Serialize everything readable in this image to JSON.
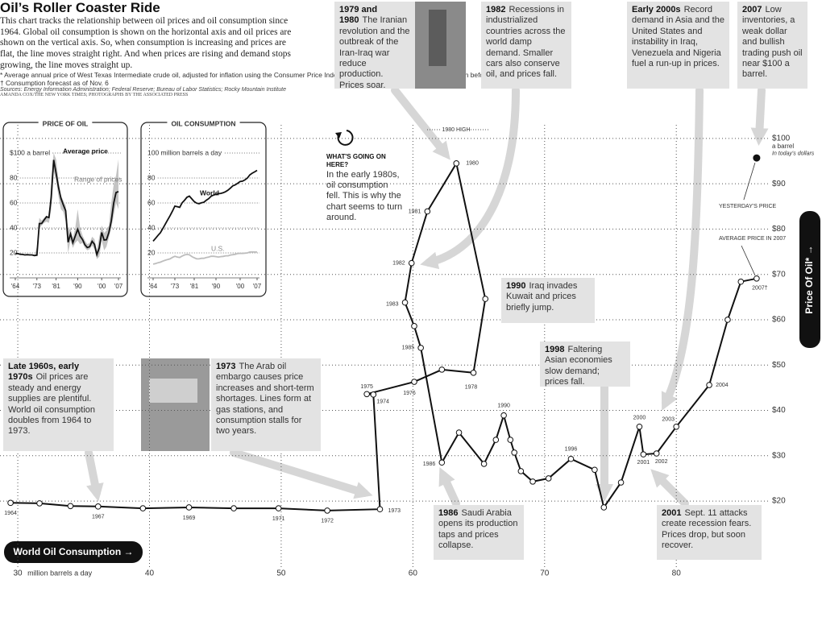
{
  "chart_data": [
    {
      "type": "scatter",
      "title": "Oil’s Roller Coaster Ride",
      "subtitle": "This chart tracks the relationship between oil prices and oil consumption since 1964.  Global oil consumption is shown on the horizontal axis and oil prices are shown on the vertical axis. So, when consumption is increasing and prices are flat, the line moves straight right. And when prices are rising and demand stops growing, the line moves straight up.",
      "x_title": "World Oil Consumption →",
      "x_label": "million barrels a day",
      "y_title": "Price Of Oil* →",
      "y_unit": "a barrel",
      "y_unit_note": "In today's dollars",
      "high_label": "1980 HIGH",
      "average_label": "AVERAGE PRICE IN 2007",
      "yesterday": {
        "label": "YESTERDAY'S PRICE",
        "x": 86.1,
        "value": 95.7
      },
      "color": "#111111",
      "grid": true,
      "xlim": [
        28.65,
        89.9
      ],
      "ylim": [
        2.6,
        103
      ],
      "xticks": [
        30,
        40,
        50,
        60,
        70,
        80
      ],
      "yticks": [
        {
          "value": 20,
          "label": "$20"
        },
        {
          "value": 30,
          "label": "$30"
        },
        {
          "value": 40,
          "label": "$40"
        },
        {
          "value": 50,
          "label": "$50"
        },
        {
          "value": 60,
          "label": "$60"
        },
        {
          "value": 70,
          "label": "$70"
        },
        {
          "value": 80,
          "label": "$80"
        },
        {
          "value": 90,
          "label": "$90"
        },
        {
          "value": 100,
          "label": "$100"
        }
      ],
      "x": [
        29.45,
        31.65,
        34.0,
        36.1,
        39.5,
        43.0,
        46.4,
        49.8,
        53.5,
        57.5,
        57.0,
        56.5,
        60.1,
        62.2,
        64.6,
        65.5,
        63.3,
        61.1,
        59.9,
        59.4,
        60.1,
        60.6,
        62.2,
        63.5,
        65.4,
        66.3,
        66.9,
        67.4,
        67.7,
        68.2,
        69.1,
        70.3,
        72.0,
        73.8,
        74.5,
        75.8,
        77.2,
        77.5,
        78.5,
        80.0,
        82.5,
        83.9,
        84.9,
        86.1
      ],
      "values": [
        19.6,
        19.5,
        18.9,
        18.8,
        18.4,
        18.6,
        18.4,
        18.4,
        17.9,
        18.2,
        43.5,
        43.6,
        46.3,
        49.0,
        48.3,
        64.6,
        94.5,
        83.9,
        72.5,
        63.8,
        58.6,
        53.8,
        28.5,
        35.1,
        28.2,
        33.5,
        38.9,
        33.5,
        30.7,
        26.6,
        24.3,
        25.0,
        29.3,
        26.9,
        18.6,
        24.1,
        36.4,
        30.3,
        30.5,
        36.4,
        45.6,
        60.0,
        68.4,
        69.1
      ],
      "point_labels": [
        "1964",
        null,
        null,
        "1967",
        null,
        "1969",
        null,
        "1971",
        "1972",
        "1973",
        "1974",
        "1975",
        "1976",
        null,
        "1978",
        null,
        "1980",
        "1981",
        "1982",
        "1983",
        null,
        "1985",
        "1986",
        null,
        null,
        null,
        "1990",
        null,
        null,
        null,
        null,
        null,
        "1996",
        null,
        null,
        null,
        "2000",
        "2001",
        "2002",
        "2003",
        "2004",
        null,
        null,
        "2007†"
      ],
      "annotations": [
        {
          "title": "1979 and 1980",
          "text": "The Iranian revolution and the outbreak of the Iran-Iraq war reduce production. Prices soar."
        },
        {
          "title": "1982",
          "text": "Recessions in industrialized countries across the world damp demand. Smaller cars also conserve oil, and prices fall."
        },
        {
          "title": "Early 2000s",
          "text": "Record demand in Asia and the United States and instability in Iraq, Venezuela and Nigeria fuel a run-up in prices."
        },
        {
          "title": "2007",
          "text": "Low inventories, a weak dollar and bullish trading push oil near $100 a barrel."
        },
        {
          "title": "WHAT'S GOING ON HERE?",
          "text": "In the early 1980s, oil consumption fell. This is why the chart seems to turn around."
        },
        {
          "title": "1990",
          "text": "Iraq invades Kuwait and prices briefly jump."
        },
        {
          "title": "1998",
          "text": "Faltering Asian economies slow demand; prices fall."
        },
        {
          "title": "Late 1960s, early 1970s",
          "text": "Oil prices are steady and energy supplies are plentiful. World oil consumption doubles from 1964 to 1973."
        },
        {
          "title": "1973",
          "text": "The Arab oil embargo causes price increases and short-term shortages. Lines form at gas stations, and consumption stalls for two years."
        },
        {
          "title": "1986",
          "text": "Saudi Arabia opens its production taps and prices collapse."
        },
        {
          "title": "2001",
          "text": "Sept. 11 attacks create recession fears. Prices drop, but soon recover."
        }
      ],
      "footnote": "* Average annual price of West Texas Intermediate crude oil, adjusted for inflation using the Consumer Price Index. Posted prices (not spot prices) are shown before 1983.",
      "footnote2": "† Consumption forecast as of Nov. 6",
      "source": "Sources: Energy Information Administration; Federal Reserve; Bureau of Labor Statistics; Rocky Mountain Institute",
      "credit": "AMANDA COX/THE NEW YORK TIMES; PHOTOGRAPHS BY THE ASSOCIATED PRESS"
    },
    {
      "type": "line",
      "title": "PRICE OF OIL",
      "xlim": [
        1963,
        2008
      ],
      "ylim": [
        0,
        100
      ],
      "xticks": [
        {
          "value": 1964,
          "label": "'64"
        },
        {
          "value": 1973,
          "label": "'73"
        },
        {
          "value": 1981,
          "label": "'81"
        },
        {
          "value": 1990,
          "label": "'90"
        },
        {
          "value": 2000,
          "label": "'00"
        },
        {
          "value": 2007,
          "label": "'07"
        }
      ],
      "yticks": [
        20,
        40,
        60,
        80,
        {
          "value": 100,
          "label": "$100 a barrel"
        }
      ],
      "grid": true,
      "x": [
        1964,
        1965,
        1966,
        1967,
        1968,
        1969,
        1970,
        1971,
        1972,
        1973,
        1974,
        1975,
        1976,
        1977,
        1978,
        1979,
        1980,
        1981,
        1982,
        1983,
        1984,
        1985,
        1986,
        1987,
        1988,
        1989,
        1990,
        1991,
        1992,
        1993,
        1994,
        1995,
        1996,
        1997,
        1998,
        1999,
        2000,
        2001,
        2002,
        2003,
        2004,
        2005,
        2006,
        2007
      ],
      "series": [
        {
          "name": "Range of prices",
          "color": "#c4c4c4",
          "low": [
            19,
            19,
            18.5,
            18.5,
            18,
            18,
            18,
            18,
            18,
            19,
            40,
            42,
            44,
            45,
            44,
            55,
            85,
            78,
            65,
            55,
            53,
            45,
            20,
            30,
            24,
            28,
            30,
            27,
            28,
            24,
            22,
            23,
            26,
            23,
            15,
            17,
            30,
            22,
            25,
            32,
            40,
            50,
            60,
            55
          ],
          "high": [
            19,
            19,
            18.5,
            18.5,
            18,
            18,
            18,
            18,
            18,
            25,
            48,
            46,
            48,
            50,
            48,
            80,
            100,
            95,
            78,
            66,
            62,
            58,
            38,
            40,
            32,
            40,
            55,
            40,
            34,
            30,
            27,
            28,
            33,
            31,
            22,
            33,
            42,
            36,
            38,
            42,
            60,
            75,
            82,
            95
          ]
        },
        {
          "name": "Average price",
          "color": "#111111",
          "values": [
            19.6,
            19.5,
            18.9,
            18.8,
            18.4,
            18.6,
            18.4,
            18.4,
            17.9,
            18.2,
            43.5,
            43.6,
            46.3,
            49.0,
            48.3,
            64.6,
            94.5,
            83.9,
            72.5,
            63.8,
            58.6,
            53.8,
            28.5,
            35.1,
            28.2,
            33.5,
            38.9,
            33.5,
            30.7,
            26.6,
            24.3,
            25.0,
            29.3,
            26.9,
            18.6,
            24.1,
            36.4,
            30.3,
            30.5,
            36.4,
            45.6,
            60.0,
            68.4,
            69.1
          ]
        }
      ]
    },
    {
      "type": "line",
      "title": "OIL CONSUMPTION",
      "xlim": [
        1963,
        2008
      ],
      "ylim": [
        0,
        100
      ],
      "xticks": [
        {
          "value": 1964,
          "label": "'64"
        },
        {
          "value": 1973,
          "label": "'73"
        },
        {
          "value": 1981,
          "label": "'81"
        },
        {
          "value": 1990,
          "label": "'90"
        },
        {
          "value": 2000,
          "label": "'00"
        },
        {
          "value": 2007,
          "label": "'07"
        }
      ],
      "yticks": [
        20,
        40,
        60,
        80,
        {
          "value": 100,
          "label": "100 million barrels a day"
        }
      ],
      "grid": true,
      "x": [
        1964,
        1965,
        1966,
        1967,
        1968,
        1969,
        1970,
        1971,
        1972,
        1973,
        1974,
        1975,
        1976,
        1977,
        1978,
        1979,
        1980,
        1981,
        1982,
        1983,
        1984,
        1985,
        1986,
        1987,
        1988,
        1989,
        1990,
        1991,
        1992,
        1993,
        1994,
        1995,
        1996,
        1997,
        1998,
        1999,
        2000,
        2001,
        2002,
        2003,
        2004,
        2005,
        2006,
        2007
      ],
      "series": [
        {
          "name": "World",
          "color": "#111111",
          "values": [
            29.45,
            31.65,
            34.0,
            36.1,
            39.5,
            43.0,
            46.4,
            49.8,
            53.5,
            57.5,
            57.0,
            56.5,
            60.1,
            62.2,
            64.6,
            65.5,
            63.3,
            61.1,
            59.9,
            59.4,
            60.1,
            60.6,
            62.2,
            63.5,
            65.4,
            66.3,
            66.9,
            67.4,
            67.7,
            68.2,
            69.1,
            70.3,
            72.0,
            73.8,
            74.5,
            75.8,
            77.2,
            77.5,
            78.5,
            80.0,
            82.5,
            83.9,
            84.9,
            86.1
          ]
        },
        {
          "name": "U.S.",
          "color": "#bdbdbd",
          "values": [
            11.0,
            11.5,
            12.1,
            12.6,
            13.4,
            14.1,
            14.7,
            15.2,
            16.4,
            17.3,
            16.7,
            16.3,
            17.5,
            18.4,
            18.8,
            18.5,
            17.1,
            16.1,
            15.3,
            15.2,
            15.7,
            15.7,
            16.3,
            16.7,
            17.3,
            17.3,
            17.0,
            16.7,
            17.0,
            17.2,
            17.7,
            17.7,
            18.3,
            18.6,
            18.9,
            19.5,
            19.7,
            19.6,
            19.8,
            20.0,
            20.7,
            20.8,
            20.7,
            20.7
          ]
        }
      ]
    }
  ]
}
